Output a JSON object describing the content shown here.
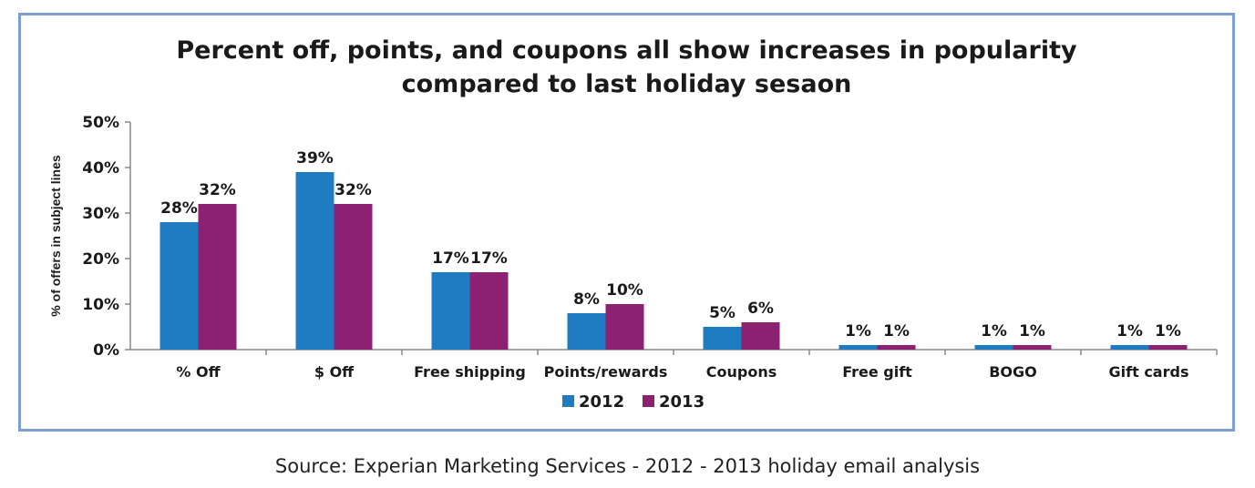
{
  "chart_data": {
    "type": "bar",
    "title_lines": [
      "Percent off, points, and coupons all show increases in popularity",
      "compared to last holiday sesaon"
    ],
    "ylabel": "% of offers in subject lines",
    "xlabel": "",
    "ylim": [
      0,
      50
    ],
    "yticks": [
      0,
      10,
      20,
      30,
      40,
      50
    ],
    "ytick_labels": [
      "0%",
      "10%",
      "20%",
      "30%",
      "40%",
      "50%"
    ],
    "categories": [
      "% Off",
      "$ Off",
      "Free shipping",
      "Points/rewards",
      "Coupons",
      "Free gift",
      "BOGO",
      "Gift cards"
    ],
    "series": [
      {
        "name": "2012",
        "color": "#1f7cc1",
        "values": [
          28,
          39,
          17,
          8,
          5,
          1,
          1,
          1
        ],
        "labels": [
          "28%",
          "39%",
          "17%",
          "8%",
          "5%",
          "1%",
          "1%",
          "1%"
        ]
      },
      {
        "name": "2013",
        "color": "#8b2170",
        "values": [
          32,
          32,
          17,
          10,
          6,
          1,
          1,
          1
        ],
        "labels": [
          "32%",
          "32%",
          "17%",
          "10%",
          "6%",
          "1%",
          "1%",
          "1%"
        ]
      }
    ],
    "legend_position": "bottom",
    "grid": false
  },
  "source_text": "Source: Experian Marketing Services - 2012 - 2013 holiday email analysis"
}
